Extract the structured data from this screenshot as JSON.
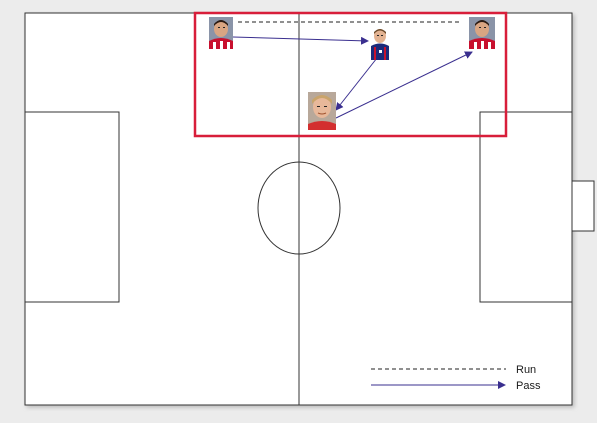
{
  "diagram": {
    "type": "football-tactics",
    "colors": {
      "pitch": "#ffffff",
      "lines": "#333333",
      "highlight": "#d81e3a",
      "pass": "#3a2f8f",
      "run": "#222222",
      "background": "#ececec"
    },
    "players": [
      {
        "id": "p1",
        "name": "player-top-left",
        "shirt": "#c8102e",
        "hair": "#2a1a12",
        "skin": "#d9a582"
      },
      {
        "id": "p2",
        "name": "player-center",
        "shirt": "#1b2a7a",
        "hair": "#6b4a2a",
        "skin": "#e3b392"
      },
      {
        "id": "p3",
        "name": "player-top-right",
        "shirt": "#c8102e",
        "hair": "#2a1a12",
        "skin": "#d9a582"
      },
      {
        "id": "p4",
        "name": "player-bottom",
        "shirt": "#d32f2f",
        "hair": "#c9a46b",
        "skin": "#e8b89a"
      }
    ],
    "moves": [
      {
        "type": "pass",
        "from": "p1",
        "to": "p2"
      },
      {
        "type": "pass",
        "from": "p2",
        "to": "p4"
      },
      {
        "type": "pass",
        "from": "p4",
        "to": "p3"
      },
      {
        "type": "run",
        "from": "p1",
        "to": "p3"
      }
    ],
    "legend": {
      "run_label": "Run",
      "pass_label": "Pass"
    }
  }
}
